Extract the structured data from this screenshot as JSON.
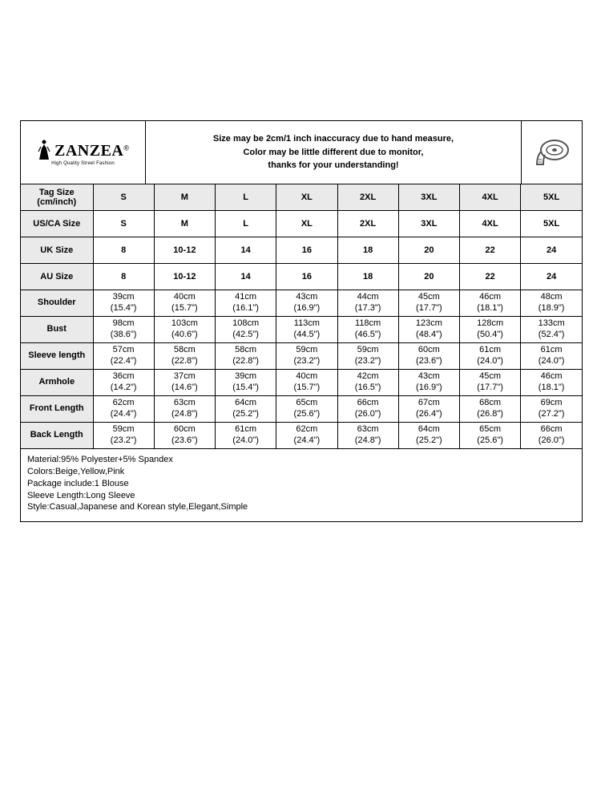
{
  "brand": {
    "name": "ZANZEA",
    "reg": "®",
    "tagline": "High Quality Street Fashion"
  },
  "disclaimer": {
    "l1": "Size may be 2cm/1 inch inaccuracy due to hand measure,",
    "l2": "Color may be little different due to monitor,",
    "l3": "thanks for your understanding!"
  },
  "columns": [
    "S",
    "M",
    "L",
    "XL",
    "2XL",
    "3XL",
    "4XL",
    "5XL"
  ],
  "simple_rows": [
    {
      "label_l1": "Tag Size",
      "label_l2": "(cm/inch)",
      "cells": [
        "S",
        "M",
        "L",
        "XL",
        "2XL",
        "3XL",
        "4XL",
        "5XL"
      ],
      "shaded": true
    },
    {
      "label": "US/CA Size",
      "cells": [
        "S",
        "M",
        "L",
        "XL",
        "2XL",
        "3XL",
        "4XL",
        "5XL"
      ]
    },
    {
      "label": "UK Size",
      "cells": [
        "8",
        "10-12",
        "14",
        "16",
        "18",
        "20",
        "22",
        "24"
      ]
    },
    {
      "label": "AU Size",
      "cells": [
        "8",
        "10-12",
        "14",
        "16",
        "18",
        "20",
        "22",
        "24"
      ]
    }
  ],
  "meas_rows": [
    {
      "label": "Shoulder",
      "cells": [
        [
          "39cm",
          "(15.4\")"
        ],
        [
          "40cm",
          "(15.7\")"
        ],
        [
          "41cm",
          "(16.1\")"
        ],
        [
          "43cm",
          "(16.9\")"
        ],
        [
          "44cm",
          "(17.3\")"
        ],
        [
          "45cm",
          "(17.7\")"
        ],
        [
          "46cm",
          "(18.1\")"
        ],
        [
          "48cm",
          "(18.9\")"
        ]
      ]
    },
    {
      "label": "Bust",
      "cells": [
        [
          "98cm",
          "(38.6\")"
        ],
        [
          "103cm",
          "(40.6\")"
        ],
        [
          "108cm",
          "(42.5\")"
        ],
        [
          "113cm",
          "(44.5\")"
        ],
        [
          "118cm",
          "(46.5\")"
        ],
        [
          "123cm",
          "(48.4\")"
        ],
        [
          "128cm",
          "(50.4\")"
        ],
        [
          "133cm",
          "(52.4\")"
        ]
      ]
    },
    {
      "label": "Sleeve length",
      "cells": [
        [
          "57cm",
          "(22.4\")"
        ],
        [
          "58cm",
          "(22.8\")"
        ],
        [
          "58cm",
          "(22.8\")"
        ],
        [
          "59cm",
          "(23.2\")"
        ],
        [
          "59cm",
          "(23.2\")"
        ],
        [
          "60cm",
          "(23.6\")"
        ],
        [
          "61cm",
          "(24.0\")"
        ],
        [
          "61cm",
          "(24.0\")"
        ]
      ]
    },
    {
      "label": "Armhole",
      "cells": [
        [
          "36cm",
          "(14.2\")"
        ],
        [
          "37cm",
          "(14.6\")"
        ],
        [
          "39cm",
          "(15.4\")"
        ],
        [
          "40cm",
          "(15.7\")"
        ],
        [
          "42cm",
          "(16.5\")"
        ],
        [
          "43cm",
          "(16.9\")"
        ],
        [
          "45cm",
          "(17.7\")"
        ],
        [
          "46cm",
          "(18.1\")"
        ]
      ]
    },
    {
      "label": "Front Length",
      "cells": [
        [
          "62cm",
          "(24.4\")"
        ],
        [
          "63cm",
          "(24.8\")"
        ],
        [
          "64cm",
          "(25.2\")"
        ],
        [
          "65cm",
          "(25.6\")"
        ],
        [
          "66cm",
          "(26.0\")"
        ],
        [
          "67cm",
          "(26.4\")"
        ],
        [
          "68cm",
          "(26.8\")"
        ],
        [
          "69cm",
          "(27.2\")"
        ]
      ]
    },
    {
      "label": "Back Length",
      "cells": [
        [
          "59cm",
          "(23.2\")"
        ],
        [
          "60cm",
          "(23.6\")"
        ],
        [
          "61cm",
          "(24.0\")"
        ],
        [
          "62cm",
          "(24.4\")"
        ],
        [
          "63cm",
          "(24.8\")"
        ],
        [
          "64cm",
          "(25.2\")"
        ],
        [
          "65cm",
          "(25.6\")"
        ],
        [
          "66cm",
          "(26.0\")"
        ]
      ]
    }
  ],
  "footer": [
    "Material:95% Polyester+5% Spandex",
    "Colors:Beige,Yellow,Pink",
    "Package include:1 Blouse",
    "Sleeve Length:Long Sleeve",
    "Style:Casual,Japanese and Korean style,Elegant,Simple"
  ],
  "style": {
    "page_bg": "#ffffff",
    "border": "#000000",
    "shade": "#eaeaea",
    "font_family": "Arial",
    "cell_fs": 11,
    "header_fs": 11,
    "logo_fs": 20
  }
}
